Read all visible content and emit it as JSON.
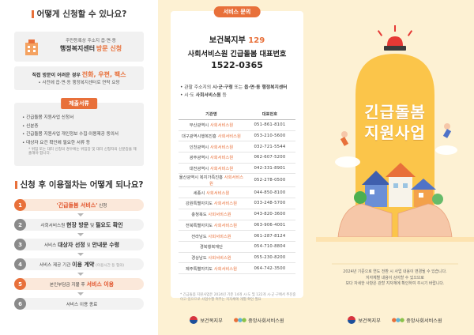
{
  "panel1": {
    "how_title": "어떻게 신청할 수 있나요?",
    "visit": {
      "line1": "주민등록상 주소지 읍·면·동",
      "line2_a": "행정복지센터",
      "line2_b": "방문 신청"
    },
    "alt": {
      "line1_a": "직접 방문이 어려운 경우",
      "line1_b": "전화, 우편, 팩스",
      "line2": "• 사전에 읍·면·동 행정복지센터로 연락 요망"
    },
    "docs": {
      "label": "제출서류",
      "items": [
        "• 긴급돌봄 지원사업 신청서",
        "• 신분증",
        "• 긴급돌봄 지원사업 개인정보 수집·이용제공 동의서",
        "• 대상자 요건 확인에 필요한 서류 등"
      ],
      "note": "* 위임 또는 대리 신청의 경우에는 위임장 및 대리 신청자의 신분증을 제출해야 합니다."
    },
    "procedure_title": "신청 후 이용절차는 어떻게 되나요?",
    "steps": [
      {
        "num": "1",
        "a": "'긴급돌봄 서비스'",
        "b": "신청"
      },
      {
        "num": "2",
        "a": "사회서비스원",
        "b": "현장 방문",
        "c": "및",
        "d": "필요도 확인"
      },
      {
        "num": "3",
        "a": "서비스",
        "b": "대상자 선정",
        "c": "및",
        "d": "안내문 수령"
      },
      {
        "num": "4",
        "a": "서비스 제공 기관",
        "b": "이용 계약",
        "c": "(이용시간 등 협의)"
      },
      {
        "num": "5",
        "a": "본인부담금 지불 후",
        "b": "서비스 이용"
      },
      {
        "num": "6",
        "a": "서비스 이용 종료"
      }
    ]
  },
  "panel2": {
    "tag": "서비스 문의",
    "line1_a": "보건복지부",
    "line1_b": "129",
    "line2": "사회서비스원 긴급돌봄 대표번호",
    "line3": "1522-0365",
    "bullet1_a": "• 관할 주소지의",
    "bullet1_b": "시·군·구청",
    "bullet1_c": "또는",
    "bullet1_d": "읍·면·동 행정복지센터",
    "bullet2_a": "• 시·도",
    "bullet2_b": "사회서비스원",
    "bullet2_c": "등",
    "table_headers": [
      "기관명",
      "대표번호"
    ],
    "table_rows": [
      {
        "region": "부산광역시",
        "org": "사회서비스원",
        "phone": "051-861-8101"
      },
      {
        "region": "대구광역시행복진흥",
        "org": "사회서비스원",
        "phone": "053-210-5600"
      },
      {
        "region": "인천광역시",
        "org": "사회서비스원",
        "phone": "032-721-5544"
      },
      {
        "region": "광주광역시",
        "org": "사회서비스원",
        "phone": "062-607-5200"
      },
      {
        "region": "대전광역시",
        "org": "사회서비스원",
        "phone": "042-331-8901"
      },
      {
        "region": "울산광역시 복지가족진흥",
        "org": "사회서비스원",
        "phone": "052-278-0500"
      },
      {
        "region": "세종시",
        "org": "사회서비스원",
        "phone": "044-850-8100"
      },
      {
        "region": "강원특별자치도",
        "org": "사회서비스원",
        "phone": "033-248-5700"
      },
      {
        "region": "충청북도",
        "org": "사회서비스원",
        "phone": "043-820-3600"
      },
      {
        "region": "전북특별자치도",
        "org": "사회서비스원",
        "phone": "063-906-4001"
      },
      {
        "region": "전라남도",
        "org": "사회서비스원",
        "phone": "061-287-8124"
      },
      {
        "region": "경북행복재단",
        "org": "",
        "phone": "054-710-8804"
      },
      {
        "region": "경상남도",
        "org": "사회서비스원",
        "phone": "055-230-8200"
      },
      {
        "region": "제주특별자치도",
        "org": "사회서비스원",
        "phone": "064-742-3500"
      }
    ],
    "note": "* 긴급돌봄 지원사업은 2024년 기준 14개 시·도 및 122개 시·군·구에서 추진중이고 있으므로 사업수행 여부는 지자체에 개별 확인 필요",
    "logo1": "보건복지부",
    "logo2": "중앙사회서비스원"
  },
  "panel3": {
    "title1": "긴급돌봄",
    "title2": "지원사업",
    "caption_line1": "2024년 기준으로 연도 전환 시 사업 내용이 변경될 수 있습니다.",
    "caption_line2": "지자체별 내용이 상이할 수 있으므로",
    "caption_line3": "보다 자세한 사항은 관할 지자체에 확인하여 주시기 바랍니다.",
    "logo1": "보건복지부",
    "logo2": "중앙사회서비스원"
  },
  "colors": {
    "accent": "#e8703a",
    "cream": "#fdf1d3",
    "sun": "#fbc54a",
    "siren": "#e53935"
  }
}
